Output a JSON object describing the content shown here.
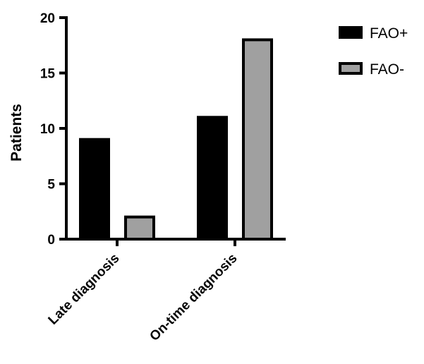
{
  "chart_data": {
    "type": "bar",
    "categories": [
      "Late diagnosis",
      "On-time diagnosis"
    ],
    "series": [
      {
        "name": "FAO+",
        "values": [
          9,
          11
        ],
        "color": "#000000"
      },
      {
        "name": "FAO-",
        "values": [
          2,
          18
        ],
        "color": "#a0a0a0"
      }
    ],
    "ylabel": "Patients",
    "xlabel": "",
    "ylim": [
      0,
      20
    ],
    "yticks": [
      0,
      5,
      10,
      15,
      20
    ],
    "grid": false,
    "legend": "top-right"
  }
}
